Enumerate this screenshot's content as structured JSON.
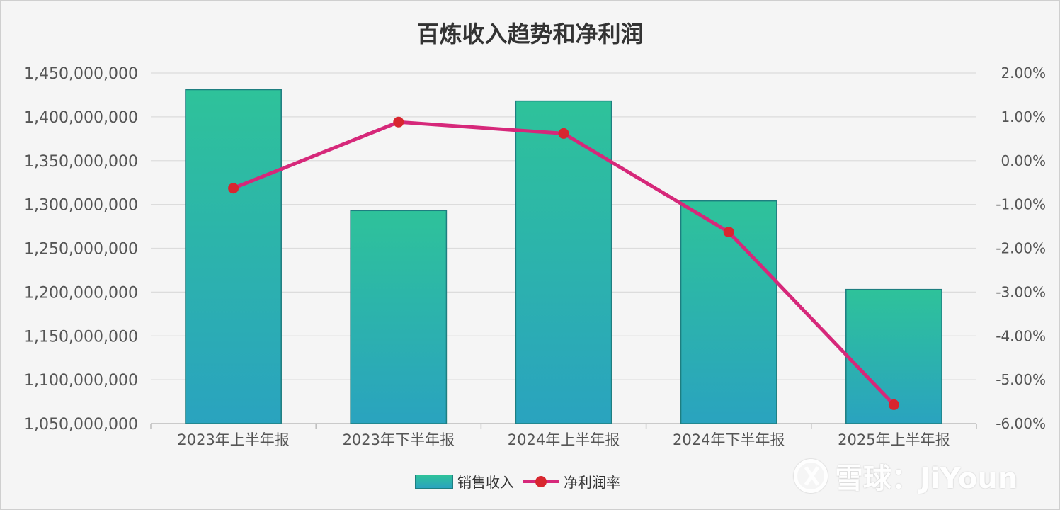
{
  "chart_data": {
    "type": "bar",
    "title": "百炼收入趋势和净利润",
    "categories": [
      "2023年上半年报",
      "2023年下半年报",
      "2024年上半年报",
      "2024年下半年报",
      "2025年上半年报"
    ],
    "series": [
      {
        "name": "销售收入",
        "type": "bar",
        "axis": "left",
        "values": [
          1431000000,
          1293000000,
          1418000000,
          1304000000,
          1203000000
        ],
        "colors": {
          "top": "#2ec29a",
          "bottom": "#2aa3bf",
          "border": "#1e7e80"
        }
      },
      {
        "name": "净利润率",
        "type": "line",
        "axis": "right",
        "values": [
          -0.63,
          0.88,
          0.62,
          -1.63,
          -5.57
        ],
        "colors": {
          "line": "#d6287a",
          "marker": "#d8262f"
        }
      }
    ],
    "y_left": {
      "ylim": [
        1050000000,
        1450000000
      ],
      "ticks": [
        1050000000,
        1100000000,
        1150000000,
        1200000000,
        1250000000,
        1300000000,
        1350000000,
        1400000000,
        1450000000
      ],
      "tick_labels": [
        "1,050,000,000",
        "1,100,000,000",
        "1,150,000,000",
        "1,200,000,000",
        "1,250,000,000",
        "1,300,000,000",
        "1,350,000,000",
        "1,400,000,000",
        "1,450,000,000"
      ]
    },
    "y_right": {
      "ylim": [
        -6,
        2
      ],
      "ticks": [
        -6,
        -5,
        -4,
        -3,
        -2,
        -1,
        0,
        1,
        2
      ],
      "tick_labels": [
        "-6.00%",
        "-5.00%",
        "-4.00%",
        "-3.00%",
        "-2.00%",
        "-1.00%",
        "0.00%",
        "1.00%",
        "2.00%"
      ]
    },
    "grid": true,
    "legend_position": "bottom-center"
  },
  "legend": {
    "items": [
      {
        "label": "销售收入",
        "kind": "bar"
      },
      {
        "label": "净利润率",
        "kind": "line"
      }
    ]
  },
  "watermark": {
    "text": "雪球：JiYoun"
  }
}
